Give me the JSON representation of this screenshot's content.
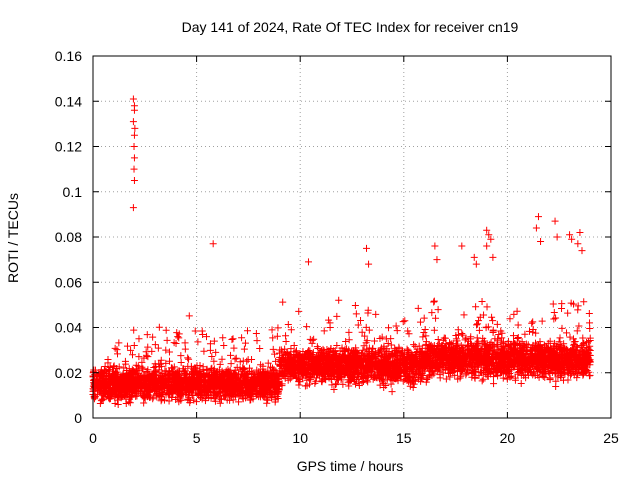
{
  "chart_data": {
    "type": "scatter",
    "title": "Day 141 of 2024, Rate Of TEC Index for receiver cn19",
    "xlabel": "GPS time / hours",
    "ylabel": "ROTI / TECUs",
    "xlim": [
      0,
      25
    ],
    "ylim": [
      0,
      0.16
    ],
    "x_ticks": [
      0,
      5,
      10,
      15,
      20,
      25
    ],
    "x_tick_labels": [
      "0",
      "5",
      "10",
      "15",
      "20",
      "25"
    ],
    "y_ticks": [
      0,
      0.02,
      0.04,
      0.06,
      0.08,
      0.1,
      0.12,
      0.14,
      0.16
    ],
    "y_tick_labels": [
      "0",
      "0.02",
      "0.04",
      "0.06",
      "0.08",
      "0.1",
      "0.12",
      "0.14",
      "0.16"
    ],
    "grid": true,
    "legend": "none",
    "marker": "plus",
    "colors": {
      "series": "#ff0000",
      "grid": "#a0a0a0",
      "axis": "#000000"
    },
    "series": [
      {
        "name": "ROTI",
        "points": [
          [
            1.95,
            0.141
          ],
          [
            2.0,
            0.138
          ],
          [
            2.0,
            0.136
          ],
          [
            1.95,
            0.131
          ],
          [
            2.02,
            0.128
          ],
          [
            2.0,
            0.125
          ],
          [
            1.98,
            0.12
          ],
          [
            2.0,
            0.115
          ],
          [
            1.98,
            0.11
          ],
          [
            2.0,
            0.105
          ],
          [
            1.95,
            0.093
          ],
          [
            5.8,
            0.077
          ],
          [
            10.4,
            0.069
          ],
          [
            13.2,
            0.075
          ],
          [
            13.3,
            0.068
          ],
          [
            16.5,
            0.076
          ],
          [
            16.6,
            0.07
          ],
          [
            17.8,
            0.076
          ],
          [
            18.4,
            0.071
          ],
          [
            18.5,
            0.068
          ],
          [
            19.0,
            0.083
          ],
          [
            19.1,
            0.081
          ],
          [
            19.2,
            0.079
          ],
          [
            19.0,
            0.076
          ],
          [
            19.3,
            0.071
          ],
          [
            21.5,
            0.089
          ],
          [
            21.4,
            0.084
          ],
          [
            21.6,
            0.078
          ],
          [
            22.3,
            0.087
          ],
          [
            22.4,
            0.08
          ],
          [
            23.0,
            0.081
          ],
          [
            23.1,
            0.079
          ],
          [
            23.5,
            0.082
          ],
          [
            23.4,
            0.077
          ],
          [
            23.6,
            0.074
          ]
        ]
      }
    ]
  }
}
